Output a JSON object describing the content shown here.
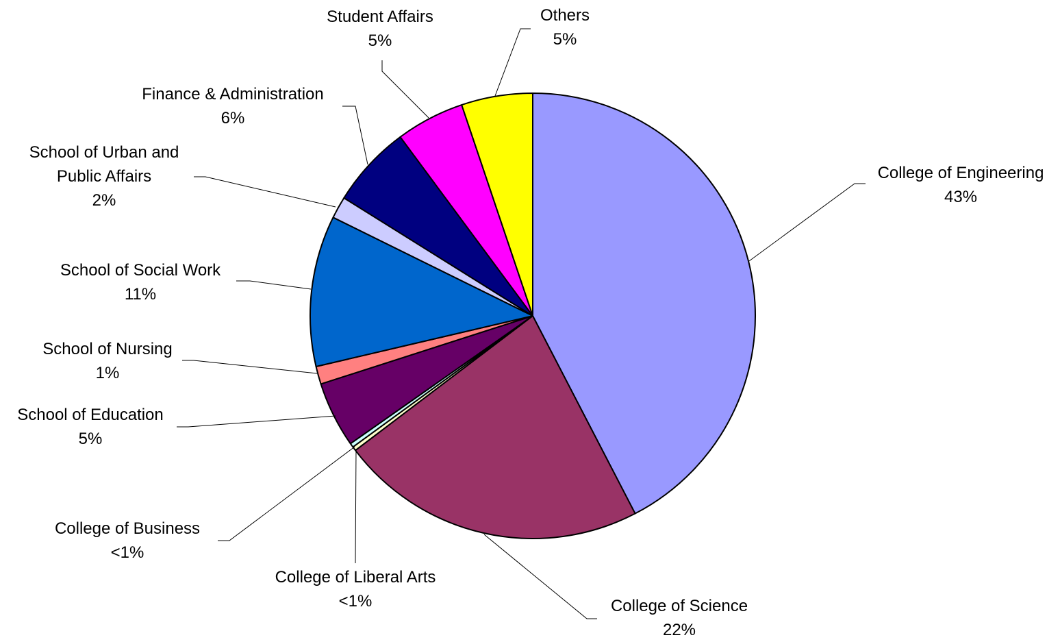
{
  "chart_data": {
    "type": "pie",
    "categories": [
      "College of Engineering",
      "College of Science",
      "College of Liberal Arts",
      "College of Business",
      "School of Education",
      "School of Nursing",
      "School of Social Work",
      "School of Urban and Public Affairs",
      "Finance & Administration",
      "Student Affairs",
      "Others"
    ],
    "values": [
      42.6,
      22.4,
      0.3,
      0.3,
      4.8,
      1.3,
      11,
      1.6,
      6,
      5,
      5.2
    ],
    "value_labels": [
      "43%",
      "22%",
      "<1%",
      "<1%",
      "5%",
      "1%",
      "11%",
      "2%",
      "6%",
      "5%",
      "5%"
    ],
    "colors": [
      "#9999ff",
      "#993366",
      "#ffffcc",
      "#ccffff",
      "#660066",
      "#ff8080",
      "#0066cc",
      "#ccccff",
      "#000080",
      "#ff00ff",
      "#ffff00"
    ]
  }
}
